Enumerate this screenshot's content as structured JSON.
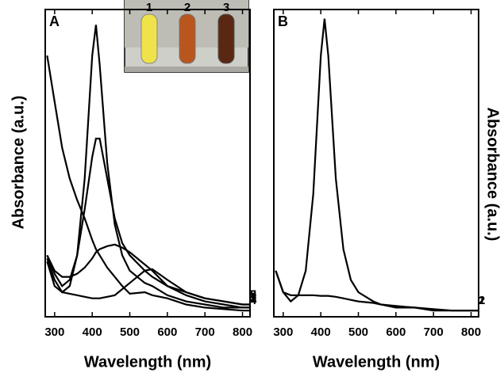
{
  "chart_data": [
    {
      "type": "line",
      "panel_label": "A",
      "y_label": "Absorbance (a.u.)",
      "x_label": "Wavelength (nm)",
      "x": [
        280,
        300,
        320,
        340,
        360,
        380,
        400,
        410,
        420,
        440,
        460,
        480,
        500,
        540,
        560,
        600,
        650,
        700,
        750,
        800,
        820
      ],
      "xlim": [
        275,
        820
      ],
      "xticks": [
        300,
        400,
        500,
        600,
        700,
        800
      ],
      "ylim": [
        0,
        1
      ],
      "inset_labels": [
        "1",
        "2",
        "3"
      ],
      "series": [
        {
          "name": "1",
          "color": "#000000",
          "values": [
            0.19,
            0.12,
            0.08,
            0.1,
            0.2,
            0.45,
            0.85,
            0.95,
            0.82,
            0.5,
            0.3,
            0.2,
            0.15,
            0.11,
            0.1,
            0.07,
            0.05,
            0.04,
            0.03,
            0.03,
            0.03
          ]
        },
        {
          "name": "2",
          "color": "#000000",
          "values": [
            0.2,
            0.14,
            0.1,
            0.12,
            0.2,
            0.35,
            0.52,
            0.58,
            0.58,
            0.45,
            0.32,
            0.24,
            0.2,
            0.15,
            0.13,
            0.1,
            0.08,
            0.06,
            0.05,
            0.04,
            0.04
          ]
        },
        {
          "name": "3",
          "color": "#000000",
          "values": [
            0.2,
            0.15,
            0.13,
            0.13,
            0.14,
            0.16,
            0.19,
            0.21,
            0.22,
            0.23,
            0.235,
            0.225,
            0.21,
            0.17,
            0.15,
            0.1,
            0.07,
            0.05,
            0.04,
            0.03,
            0.03
          ]
        },
        {
          "name": "4",
          "color": "#000000",
          "values": [
            0.85,
            0.7,
            0.55,
            0.45,
            0.38,
            0.32,
            0.25,
            0.22,
            0.2,
            0.16,
            0.13,
            0.1,
            0.075,
            0.08,
            0.07,
            0.06,
            0.04,
            0.03,
            0.025,
            0.02,
            0.02
          ]
        },
        {
          "name": "5",
          "color": "#000000",
          "values": [
            0.18,
            0.1,
            0.08,
            0.075,
            0.07,
            0.065,
            0.06,
            0.06,
            0.06,
            0.065,
            0.07,
            0.09,
            0.11,
            0.15,
            0.155,
            0.12,
            0.08,
            0.06,
            0.05,
            0.04,
            0.04
          ]
        }
      ]
    },
    {
      "type": "line",
      "panel_label": "B",
      "y_label": "Absorbance (a.u.)",
      "x_label": "Wavelength (nm)",
      "x": [
        280,
        300,
        320,
        340,
        360,
        380,
        400,
        410,
        420,
        440,
        460,
        480,
        500,
        540,
        560,
        600,
        650,
        700,
        750,
        800,
        820
      ],
      "xlim": [
        275,
        820
      ],
      "xticks": [
        300,
        400,
        500,
        600,
        700,
        800
      ],
      "ylim": [
        0,
        1
      ],
      "series": [
        {
          "name": "1",
          "color": "#000000",
          "values": [
            0.15,
            0.08,
            0.05,
            0.07,
            0.15,
            0.4,
            0.85,
            0.97,
            0.85,
            0.45,
            0.22,
            0.12,
            0.08,
            0.05,
            0.04,
            0.03,
            0.03,
            0.02,
            0.02,
            0.02,
            0.02
          ]
        },
        {
          "name": "2",
          "color": "#000000",
          "values": [
            0.15,
            0.08,
            0.07,
            0.07,
            0.07,
            0.07,
            0.068,
            0.068,
            0.068,
            0.065,
            0.06,
            0.055,
            0.05,
            0.045,
            0.04,
            0.035,
            0.03,
            0.025,
            0.02,
            0.02,
            0.02
          ]
        }
      ]
    }
  ]
}
